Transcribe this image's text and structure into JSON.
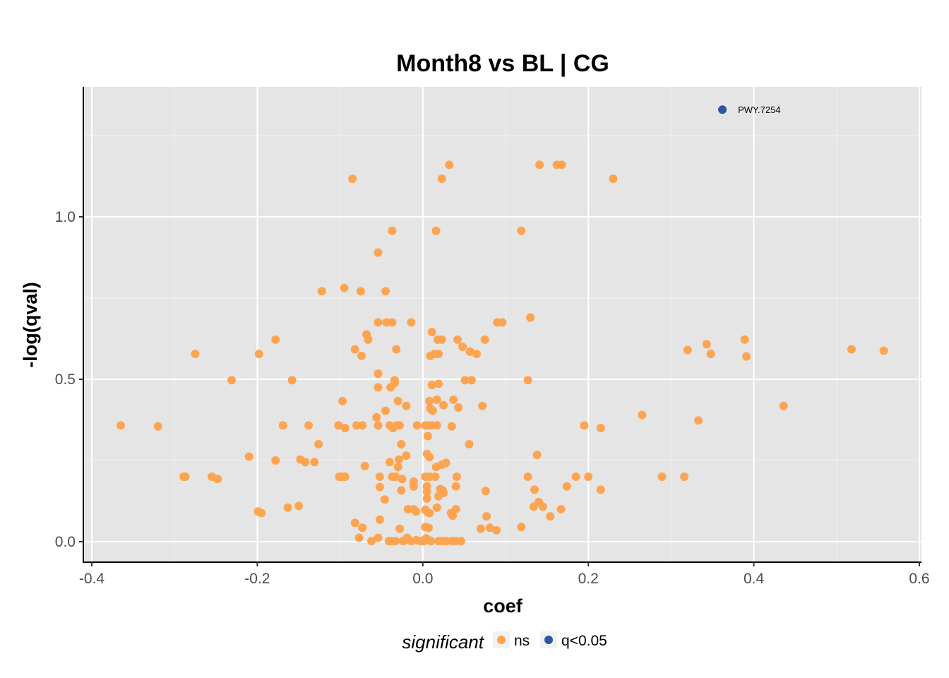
{
  "chart_data": {
    "type": "scatter",
    "title": "Month8 vs BL | CG",
    "xlabel": "coef",
    "ylabel": "-log(qval)",
    "xlim": [
      -0.41,
      0.6
    ],
    "ylim": [
      -0.065,
      1.4
    ],
    "xticks": [
      -0.4,
      -0.2,
      0.0,
      0.2,
      0.4,
      0.6
    ],
    "xtick_labels": [
      "-0.4",
      "-0.2",
      "0.0",
      "0.2",
      "0.4",
      "0.6"
    ],
    "yticks": [
      0.0,
      0.5,
      1.0
    ],
    "ytick_labels": [
      "0.0",
      "0.5",
      "1.0"
    ],
    "grid": true,
    "legend": {
      "title": "significant",
      "position": "bottom",
      "entries": [
        {
          "label": "ns",
          "color": "#FDA451"
        },
        {
          "label": "q<0.05",
          "color": "#2B56A2"
        }
      ]
    },
    "annotations": [
      {
        "text": "PWY.7254",
        "x": 0.362,
        "y": 1.33
      }
    ],
    "series": [
      {
        "name": "ns",
        "color": "#FDA451",
        "points": [
          [
            -0.085,
            1.117
          ],
          [
            0.032,
            1.16
          ],
          [
            0.023,
            1.117
          ],
          [
            0.141,
            1.16
          ],
          [
            0.162,
            1.16
          ],
          [
            0.168,
            1.16
          ],
          [
            0.23,
            1.117
          ],
          [
            -0.037,
            0.957
          ],
          [
            0.016,
            0.957
          ],
          [
            0.119,
            0.957
          ],
          [
            -0.054,
            0.89
          ],
          [
            -0.122,
            0.771
          ],
          [
            -0.095,
            0.781
          ],
          [
            -0.075,
            0.771
          ],
          [
            -0.045,
            0.771
          ],
          [
            -0.054,
            0.675
          ],
          [
            -0.044,
            0.675
          ],
          [
            -0.037,
            0.675
          ],
          [
            -0.014,
            0.675
          ],
          [
            0.09,
            0.675
          ],
          [
            0.096,
            0.675
          ],
          [
            0.13,
            0.69
          ],
          [
            -0.178,
            0.622
          ],
          [
            -0.068,
            0.638
          ],
          [
            -0.066,
            0.622
          ],
          [
            0.011,
            0.645
          ],
          [
            0.018,
            0.622
          ],
          [
            0.023,
            0.622
          ],
          [
            0.042,
            0.622
          ],
          [
            0.075,
            0.622
          ],
          [
            0.389,
            0.622
          ],
          [
            0.343,
            0.608
          ],
          [
            -0.275,
            0.578
          ],
          [
            -0.198,
            0.578
          ],
          [
            -0.082,
            0.592
          ],
          [
            -0.074,
            0.572
          ],
          [
            -0.032,
            0.592
          ],
          [
            0.009,
            0.572
          ],
          [
            0.014,
            0.578
          ],
          [
            0.019,
            0.578
          ],
          [
            0.048,
            0.6
          ],
          [
            0.057,
            0.585
          ],
          [
            0.065,
            0.578
          ],
          [
            0.32,
            0.59
          ],
          [
            0.348,
            0.578
          ],
          [
            0.391,
            0.57
          ],
          [
            0.518,
            0.592
          ],
          [
            0.557,
            0.588
          ],
          [
            -0.231,
            0.497
          ],
          [
            -0.158,
            0.497
          ],
          [
            -0.054,
            0.517
          ],
          [
            -0.054,
            0.475
          ],
          [
            -0.039,
            0.475
          ],
          [
            -0.034,
            0.497
          ],
          [
            -0.034,
            0.488
          ],
          [
            0.011,
            0.482
          ],
          [
            0.019,
            0.486
          ],
          [
            0.051,
            0.497
          ],
          [
            0.059,
            0.497
          ],
          [
            0.127,
            0.497
          ],
          [
            -0.097,
            0.433
          ],
          [
            -0.045,
            0.403
          ],
          [
            -0.03,
            0.433
          ],
          [
            -0.02,
            0.418
          ],
          [
            0.008,
            0.433
          ],
          [
            0.009,
            0.41
          ],
          [
            0.012,
            0.403
          ],
          [
            0.017,
            0.437
          ],
          [
            0.025,
            0.42
          ],
          [
            0.037,
            0.437
          ],
          [
            0.043,
            0.413
          ],
          [
            0.072,
            0.418
          ],
          [
            0.265,
            0.39
          ],
          [
            0.436,
            0.418
          ],
          [
            -0.365,
            0.358
          ],
          [
            -0.32,
            0.355
          ],
          [
            -0.169,
            0.358
          ],
          [
            -0.138,
            0.358
          ],
          [
            -0.102,
            0.358
          ],
          [
            -0.094,
            0.35
          ],
          [
            -0.08,
            0.358
          ],
          [
            -0.073,
            0.358
          ],
          [
            -0.056,
            0.383
          ],
          [
            -0.054,
            0.358
          ],
          [
            -0.04,
            0.358
          ],
          [
            -0.036,
            0.35
          ],
          [
            -0.031,
            0.358
          ],
          [
            -0.028,
            0.358
          ],
          [
            -0.007,
            0.358
          ],
          [
            0.003,
            0.358
          ],
          [
            0.007,
            0.358
          ],
          [
            0.011,
            0.358
          ],
          [
            0.017,
            0.358
          ],
          [
            0.035,
            0.355
          ],
          [
            0.195,
            0.358
          ],
          [
            0.215,
            0.35
          ],
          [
            0.333,
            0.373
          ],
          [
            -0.126,
            0.3
          ],
          [
            -0.026,
            0.3
          ],
          [
            0.006,
            0.325
          ],
          [
            0.056,
            0.3
          ],
          [
            -0.21,
            0.262
          ],
          [
            -0.148,
            0.253
          ],
          [
            -0.142,
            0.245
          ],
          [
            -0.131,
            0.245
          ],
          [
            -0.178,
            0.25
          ],
          [
            -0.04,
            0.245
          ],
          [
            -0.029,
            0.253
          ],
          [
            -0.02,
            0.265
          ],
          [
            0.005,
            0.27
          ],
          [
            0.008,
            0.26
          ],
          [
            0.016,
            0.23
          ],
          [
            0.023,
            0.237
          ],
          [
            0.028,
            0.243
          ],
          [
            0.138,
            0.267
          ],
          [
            -0.289,
            0.2
          ],
          [
            -0.287,
            0.2
          ],
          [
            -0.255,
            0.2
          ],
          [
            -0.248,
            0.193
          ],
          [
            -0.101,
            0.2
          ],
          [
            -0.098,
            0.2
          ],
          [
            -0.094,
            0.2
          ],
          [
            -0.07,
            0.233
          ],
          [
            -0.052,
            0.2
          ],
          [
            -0.037,
            0.2
          ],
          [
            -0.033,
            0.2
          ],
          [
            -0.03,
            0.23
          ],
          [
            -0.025,
            0.193
          ],
          [
            -0.011,
            0.185
          ],
          [
            0.003,
            0.2
          ],
          [
            0.008,
            0.2
          ],
          [
            0.015,
            0.2
          ],
          [
            0.041,
            0.2
          ],
          [
            0.127,
            0.2
          ],
          [
            0.185,
            0.2
          ],
          [
            0.2,
            0.2
          ],
          [
            0.289,
            0.2
          ],
          [
            0.316,
            0.2
          ],
          [
            -0.052,
            0.168
          ],
          [
            -0.026,
            0.158
          ],
          [
            -0.011,
            0.17
          ],
          [
            0.005,
            0.17
          ],
          [
            0.005,
            0.154
          ],
          [
            0.021,
            0.162
          ],
          [
            0.024,
            0.158
          ],
          [
            0.04,
            0.17
          ],
          [
            0.076,
            0.156
          ],
          [
            0.135,
            0.16
          ],
          [
            0.174,
            0.17
          ],
          [
            0.215,
            0.16
          ],
          [
            -0.046,
            0.13
          ],
          [
            0.005,
            0.133
          ],
          [
            0.019,
            0.14
          ],
          [
            0.025,
            0.15
          ],
          [
            -0.163,
            0.105
          ],
          [
            -0.15,
            0.11
          ],
          [
            -0.199,
            0.093
          ],
          [
            -0.195,
            0.088
          ],
          [
            -0.018,
            0.1
          ],
          [
            -0.011,
            0.1
          ],
          [
            -0.008,
            0.093
          ],
          [
            0.003,
            0.098
          ],
          [
            0.006,
            0.09
          ],
          [
            0.008,
            0.088
          ],
          [
            0.017,
            0.105
          ],
          [
            0.034,
            0.088
          ],
          [
            0.036,
            0.08
          ],
          [
            0.04,
            0.1
          ],
          [
            0.134,
            0.108
          ],
          [
            0.14,
            0.122
          ],
          [
            0.145,
            0.108
          ],
          [
            0.154,
            0.078
          ],
          [
            0.167,
            0.1
          ],
          [
            0.077,
            0.078
          ],
          [
            -0.082,
            0.058
          ],
          [
            -0.073,
            0.043
          ],
          [
            -0.052,
            0.068
          ],
          [
            -0.028,
            0.04
          ],
          [
            0.003,
            0.045
          ],
          [
            0.007,
            0.043
          ],
          [
            0.07,
            0.04
          ],
          [
            0.081,
            0.043
          ],
          [
            0.089,
            0.035
          ],
          [
            0.119,
            0.045
          ],
          [
            -0.077,
            0.012
          ],
          [
            -0.062,
            0.002
          ],
          [
            -0.054,
            0.012
          ],
          [
            -0.041,
            0.002
          ],
          [
            -0.038,
            0.002
          ],
          [
            -0.033,
            0.002
          ],
          [
            -0.024,
            0.002
          ],
          [
            -0.021,
            0.005
          ],
          [
            -0.019,
            0.012
          ],
          [
            -0.014,
            0.002
          ],
          [
            -0.008,
            0.005
          ],
          [
            -0.003,
            0.002
          ],
          [
            0.001,
            0.002
          ],
          [
            0.004,
            0.01
          ],
          [
            0.007,
            0.005
          ],
          [
            0.01,
            0.002
          ],
          [
            0.019,
            0.002
          ],
          [
            0.023,
            0.002
          ],
          [
            0.028,
            0.002
          ],
          [
            0.035,
            0.002
          ],
          [
            0.04,
            0.002
          ],
          [
            0.046,
            0.002
          ]
        ]
      },
      {
        "name": "q<0.05",
        "color": "#2B56A2",
        "points": [
          [
            0.362,
            1.33
          ]
        ]
      }
    ]
  }
}
